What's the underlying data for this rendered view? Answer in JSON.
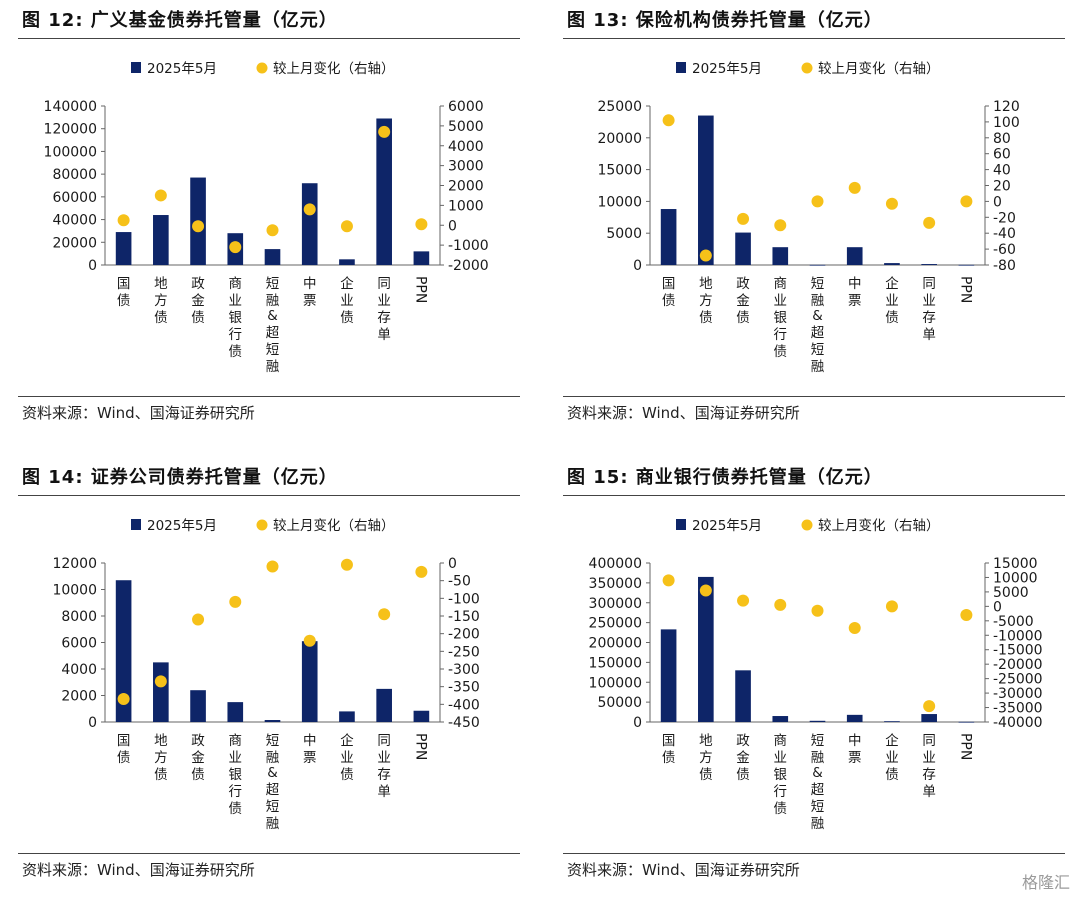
{
  "source_label": "资料来源：Wind、国海证券研究所",
  "watermark": "格隆汇",
  "chart_data": [
    {
      "title": "图 12:  广义基金债券托管量（亿元）",
      "type": "bar",
      "categories": [
        "国债",
        "地方债",
        "政金债",
        "商业银行债",
        "短融&超短融",
        "中票",
        "企业债",
        "同业存单",
        "PPN"
      ],
      "series": [
        {
          "name": "2025年5月",
          "type": "bar",
          "axis": "left",
          "values": [
            29000,
            44000,
            77000,
            28000,
            14000,
            72000,
            5000,
            129000,
            12000
          ]
        },
        {
          "name": "较上月变化（右轴）",
          "type": "scatter",
          "axis": "right",
          "values": [
            250,
            1500,
            -50,
            -1100,
            -250,
            800,
            -50,
            4700,
            50
          ]
        }
      ],
      "y_left": {
        "min": 0,
        "max": 140000,
        "step": 20000
      },
      "y_right": {
        "min": -2000,
        "max": 6000,
        "step": 1000
      }
    },
    {
      "title": "图 13:  保险机构债券托管量（亿元）",
      "type": "bar",
      "categories": [
        "国债",
        "地方债",
        "政金债",
        "商业银行债",
        "短融&超短融",
        "中票",
        "企业债",
        "同业存单",
        "PPN"
      ],
      "series": [
        {
          "name": "2025年5月",
          "type": "bar",
          "axis": "left",
          "values": [
            8800,
            23500,
            5100,
            2800,
            30,
            2800,
            300,
            150,
            30
          ]
        },
        {
          "name": "较上月变化（右轴）",
          "type": "scatter",
          "axis": "right",
          "values": [
            102,
            -68,
            -22,
            -30,
            0,
            17,
            -3,
            -27,
            0
          ]
        }
      ],
      "y_left": {
        "min": 0,
        "max": 25000,
        "step": 5000
      },
      "y_right": {
        "min": -80,
        "max": 120,
        "step": 20
      }
    },
    {
      "title": "图 14:  证券公司债券托管量（亿元）",
      "type": "bar",
      "categories": [
        "国债",
        "地方债",
        "政金债",
        "商业银行债",
        "短融&超短融",
        "中票",
        "企业债",
        "同业存单",
        "PPN"
      ],
      "series": [
        {
          "name": "2025年5月",
          "type": "bar",
          "axis": "left",
          "values": [
            10700,
            4500,
            2400,
            1500,
            150,
            6100,
            800,
            2500,
            850
          ]
        },
        {
          "name": "较上月变化（右轴）",
          "type": "scatter",
          "axis": "right",
          "values": [
            -385,
            -335,
            -160,
            -110,
            -10,
            -220,
            -5,
            -145,
            -25
          ]
        }
      ],
      "y_left": {
        "min": 0,
        "max": 12000,
        "step": 2000
      },
      "y_right": {
        "min": -450,
        "max": 0,
        "step": 50
      }
    },
    {
      "title": "图 15:  商业银行债券托管量（亿元）",
      "type": "bar",
      "categories": [
        "国债",
        "地方债",
        "政金债",
        "商业银行债",
        "短融&超短融",
        "中票",
        "企业债",
        "同业存单",
        "PPN"
      ],
      "series": [
        {
          "name": "2025年5月",
          "type": "bar",
          "axis": "left",
          "values": [
            233000,
            365000,
            130000,
            15000,
            3000,
            18000,
            2000,
            20000,
            500
          ]
        },
        {
          "name": "较上月变化（右轴）",
          "type": "scatter",
          "axis": "right",
          "values": [
            9000,
            5500,
            2000,
            500,
            -1500,
            -7500,
            0,
            -34500,
            -3000
          ]
        }
      ],
      "y_left": {
        "min": 0,
        "max": 400000,
        "step": 50000
      },
      "y_right": {
        "min": -40000,
        "max": 15000,
        "step": 5000
      }
    }
  ],
  "colors": {
    "bar": "#0e2568",
    "dot": "#f6c119",
    "axis": "#666666",
    "text": "#1a1a1a"
  }
}
